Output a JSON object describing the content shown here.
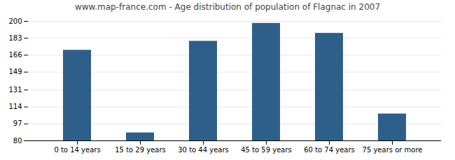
{
  "chart_data": {
    "type": "bar",
    "title": "www.map-france.com - Age distribution of population of Flagnac in 2007",
    "categories": [
      "0 to 14 years",
      "15 to 29 years",
      "30 to 44 years",
      "45 to 59 years",
      "60 to 74 years",
      "75 years or more"
    ],
    "values": [
      171,
      88,
      180,
      198,
      188,
      107
    ],
    "color": "#2E5F8A",
    "ylim": [
      80,
      200
    ],
    "yticks": [
      80,
      97,
      114,
      131,
      149,
      166,
      183,
      200
    ],
    "grid": true
  }
}
